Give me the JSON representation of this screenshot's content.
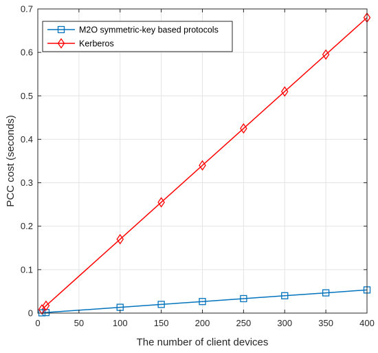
{
  "chart_data": {
    "type": "line",
    "xlabel": "The number of client devices",
    "ylabel": "PCC cost (seconds)",
    "xlim": [
      0,
      400
    ],
    "ylim": [
      0,
      0.7
    ],
    "xticks": [
      "0",
      "50",
      "100",
      "150",
      "200",
      "250",
      "300",
      "350",
      "400"
    ],
    "yticks": [
      "0",
      "0.1",
      "0.2",
      "0.3",
      "0.4",
      "0.5",
      "0.6",
      "0.7"
    ],
    "grid": true,
    "legend_position": "top-left",
    "series": [
      {
        "name": "M2O symmetric-key based protocols",
        "color": "#0072BD",
        "marker": "square",
        "x": [
          5,
          10,
          100,
          150,
          200,
          250,
          300,
          350,
          400
        ],
        "y": [
          0.0007,
          0.0013,
          0.0133,
          0.02,
          0.0266,
          0.0333,
          0.04,
          0.0466,
          0.0533
        ]
      },
      {
        "name": "Kerberos",
        "color": "#FF0000",
        "marker": "diamond",
        "x": [
          5,
          10,
          100,
          150,
          200,
          250,
          300,
          350,
          400
        ],
        "y": [
          0.0085,
          0.017,
          0.17,
          0.255,
          0.34,
          0.425,
          0.51,
          0.595,
          0.68
        ]
      }
    ]
  }
}
